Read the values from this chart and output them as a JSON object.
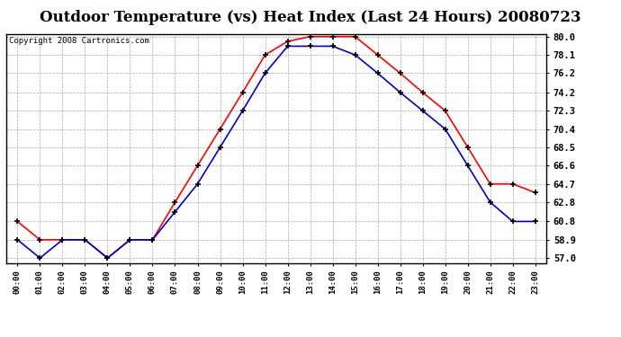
{
  "title": "Outdoor Temperature (vs) Heat Index (Last 24 Hours) 20080723",
  "copyright": "Copyright 2008 Cartronics.com",
  "hours": [
    "00:00",
    "01:00",
    "02:00",
    "03:00",
    "04:00",
    "05:00",
    "06:00",
    "07:00",
    "08:00",
    "09:00",
    "10:00",
    "11:00",
    "12:00",
    "13:00",
    "14:00",
    "15:00",
    "16:00",
    "17:00",
    "18:00",
    "19:00",
    "20:00",
    "21:00",
    "22:00",
    "23:00"
  ],
  "temp": [
    60.8,
    58.9,
    58.9,
    58.9,
    57.0,
    58.9,
    58.9,
    62.8,
    66.6,
    70.4,
    74.2,
    78.1,
    79.5,
    80.0,
    80.0,
    80.0,
    78.1,
    76.2,
    74.2,
    72.3,
    68.5,
    64.7,
    64.7,
    63.8
  ],
  "heat_index": [
    58.9,
    57.0,
    58.9,
    58.9,
    57.0,
    58.9,
    58.9,
    61.8,
    64.7,
    68.5,
    72.3,
    76.2,
    79.0,
    79.0,
    79.0,
    78.1,
    76.2,
    74.2,
    72.3,
    70.4,
    66.6,
    62.8,
    60.8,
    60.8
  ],
  "temp_color": "#FF0000",
  "heat_index_color": "#0000CC",
  "ylim_min": 57.0,
  "ylim_max": 80.0,
  "yticks": [
    57.0,
    58.9,
    60.8,
    62.8,
    64.7,
    66.6,
    68.5,
    70.4,
    72.3,
    74.2,
    76.2,
    78.1,
    80.0
  ],
  "background_color": "#FFFFFF",
  "grid_color": "#AAAAAA",
  "title_fontsize": 12,
  "copyright_fontsize": 6.5
}
